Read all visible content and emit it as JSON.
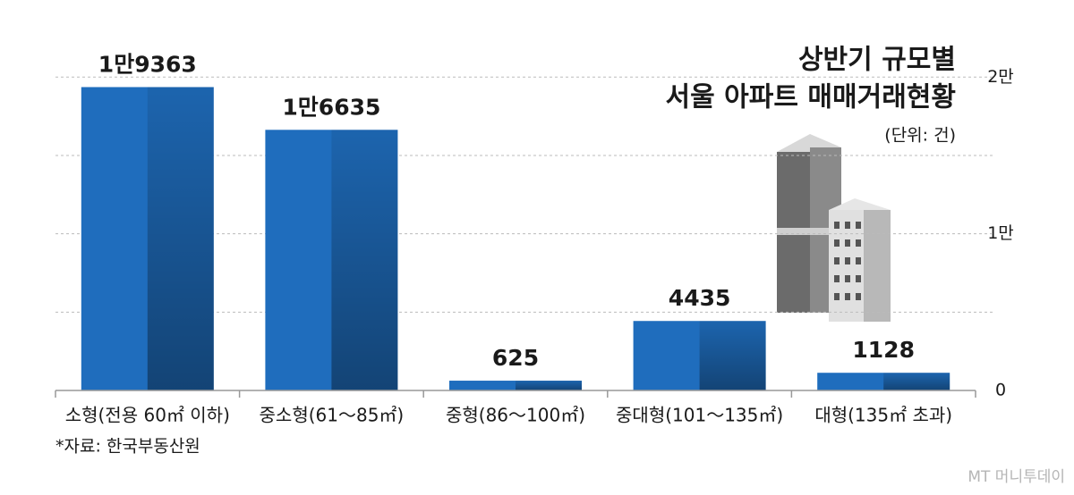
{
  "chart_data": {
    "type": "bar",
    "title": [
      "상반기 규모별",
      "서울 아파트 매매거래현황"
    ],
    "subtitle": "(단위: 건)",
    "source": "*자료: 한국부동산원",
    "watermark": "MT 머니투데이",
    "categories": [
      "소형(전용 60㎡ 이하)",
      "중소형(61～85㎡)",
      "중형(86～100㎡)",
      "중대형(101～135㎡)",
      "대형(135㎡ 초과)"
    ],
    "values": [
      19363,
      16635,
      625,
      4435,
      1128
    ],
    "value_labels": [
      "1만9363",
      "1만6635",
      "625",
      "4435",
      "1128"
    ],
    "color": "#1f6dbd",
    "ylim": [
      0,
      21500
    ],
    "yticks": [
      0,
      {
        "value": 10000,
        "label": "1만"
      },
      {
        "value": 20000,
        "label": "2만"
      }
    ],
    "minor_gridlines": [
      5000,
      15000
    ],
    "grid": true
  }
}
